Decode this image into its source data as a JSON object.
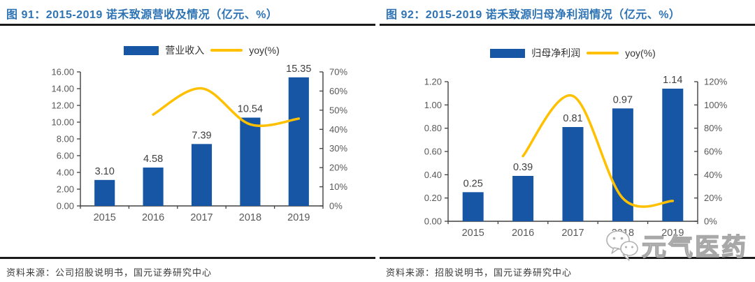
{
  "colors": {
    "title": "#2E74B5",
    "bar": "#1656A5",
    "line": "#FFC000",
    "axis": "#404040",
    "tick_label": "#595959",
    "data_label": "#404040",
    "rule": "#1a1a1a"
  },
  "watermark": {
    "text": "元气医药",
    "icon": "wechat-icon"
  },
  "figures": [
    {
      "title": "图 91：2015-2019 诺禾致源营收及情况（亿元、%）",
      "source": "资料来源：公司招股说明书，国元证券研究中心",
      "legend": {
        "bar_label": "营业收入",
        "line_label": "yoy(%)"
      },
      "chart_data": {
        "type": "bar+line",
        "title": "2015-2019 诺禾致源营收及情况（亿元、%）",
        "categories": [
          "2015",
          "2016",
          "2017",
          "2018",
          "2019"
        ],
        "series": [
          {
            "name": "营业收入",
            "type": "bar",
            "axis": "left",
            "values": [
              3.1,
              4.58,
              7.39,
              10.54,
              15.35
            ],
            "data_labels": [
              "3.10",
              "4.58",
              "7.39",
              "10.54",
              "15.35"
            ]
          },
          {
            "name": "yoy(%)",
            "type": "line",
            "axis": "right",
            "x_start_index": 1,
            "values": [
              47.7,
              61.4,
              42.6,
              45.6
            ]
          }
        ],
        "left_axis": {
          "min": 0,
          "max": 16,
          "step": 2,
          "decimals": 2
        },
        "right_axis": {
          "min": 0,
          "max": 70,
          "step": 10,
          "suffix": "%"
        },
        "grid": false,
        "legend_position": "top"
      }
    },
    {
      "title": "图 92：2015-2019 诺禾致源归母净利润情况（亿元、%）",
      "source": "资料来源：招股说明书，国元证券研究中心",
      "legend": {
        "bar_label": "归母净利润",
        "line_label": "yoy(%)"
      },
      "chart_data": {
        "type": "bar+line",
        "title": "2015-2019 诺禾致源归母净利润情况（亿元、%）",
        "categories": [
          "2015",
          "2016",
          "2017",
          "2018",
          "2019"
        ],
        "series": [
          {
            "name": "归母净利润",
            "type": "bar",
            "axis": "left",
            "values": [
              0.25,
              0.39,
              0.81,
              0.97,
              1.14
            ],
            "data_labels": [
              "0.25",
              "0.39",
              "0.81",
              "0.97",
              "1.14"
            ]
          },
          {
            "name": "yoy(%)",
            "type": "line",
            "axis": "right",
            "x_start_index": 1,
            "values": [
              56.0,
              107.7,
              19.8,
              17.5
            ]
          }
        ],
        "left_axis": {
          "min": 0,
          "max": 1.2,
          "step": 0.2,
          "decimals": 2
        },
        "right_axis": {
          "min": 0,
          "max": 120,
          "step": 20,
          "suffix": "%"
        },
        "grid": false,
        "legend_position": "top"
      }
    }
  ]
}
